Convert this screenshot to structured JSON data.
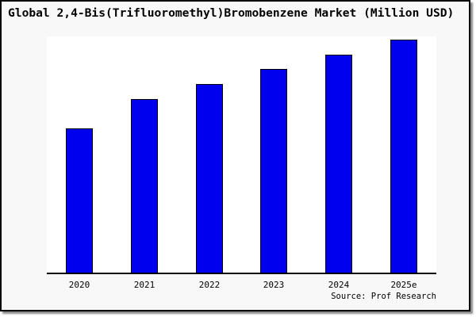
{
  "window": {
    "background": "#f8f8f8",
    "plot_background": "#ffffff",
    "border_color": "#000000",
    "shadow_color": "#8a8a8a"
  },
  "chart_data": {
    "type": "bar",
    "title": "Global 2,4-Bis(Trifluoromethyl)Bromobenzene Market (Million USD)",
    "categories": [
      "2020",
      "2021",
      "2022",
      "2023",
      "2024",
      "2025e"
    ],
    "values": [
      61.0,
      73.5,
      79.9,
      86.2,
      92.3,
      98.7
    ],
    "values_note": "No y-axis or data labels shown in image; values estimated as bar height in % of plot height (tallest bar ~99%)",
    "ylim": [
      0,
      100
    ],
    "xlabel": "",
    "ylabel": "",
    "y_axis_visible": false,
    "gridlines": false,
    "legend": false,
    "bar_color": "#0000ee",
    "bar_border_color": "#000000",
    "source": "Source: Prof Research"
  }
}
